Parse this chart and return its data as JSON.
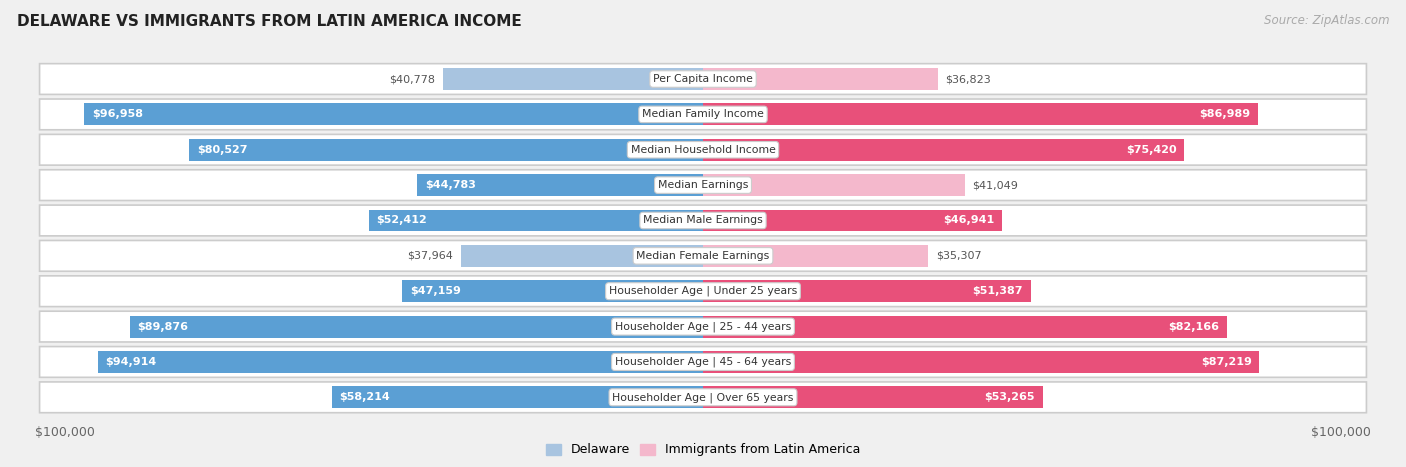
{
  "title": "DELAWARE VS IMMIGRANTS FROM LATIN AMERICA INCOME",
  "source": "Source: ZipAtlas.com",
  "categories": [
    "Per Capita Income",
    "Median Family Income",
    "Median Household Income",
    "Median Earnings",
    "Median Male Earnings",
    "Median Female Earnings",
    "Householder Age | Under 25 years",
    "Householder Age | 25 - 44 years",
    "Householder Age | 45 - 64 years",
    "Householder Age | Over 65 years"
  ],
  "delaware_values": [
    40778,
    96958,
    80527,
    44783,
    52412,
    37964,
    47159,
    89876,
    94914,
    58214
  ],
  "immigrant_values": [
    36823,
    86989,
    75420,
    41049,
    46941,
    35307,
    51387,
    82166,
    87219,
    53265
  ],
  "delaware_labels": [
    "$40,778",
    "$96,958",
    "$80,527",
    "$44,783",
    "$52,412",
    "$37,964",
    "$47,159",
    "$89,876",
    "$94,914",
    "$58,214"
  ],
  "immigrant_labels": [
    "$36,823",
    "$86,989",
    "$75,420",
    "$41,049",
    "$46,941",
    "$35,307",
    "$51,387",
    "$82,166",
    "$87,219",
    "$53,265"
  ],
  "max_value": 100000,
  "delaware_color_light": "#a8c4e0",
  "delaware_color_dark": "#5b9fd4",
  "immigrant_color_light": "#f4b8cc",
  "immigrant_color_dark": "#e8507a",
  "background_color": "#f0f0f0",
  "row_bg_light": "#ffffff",
  "row_bg_dark": "#e8e8e8",
  "bar_height": 0.62,
  "label_thresh_pct": 0.42,
  "legend_delaware": "Delaware",
  "legend_immigrant": "Immigrants from Latin America"
}
